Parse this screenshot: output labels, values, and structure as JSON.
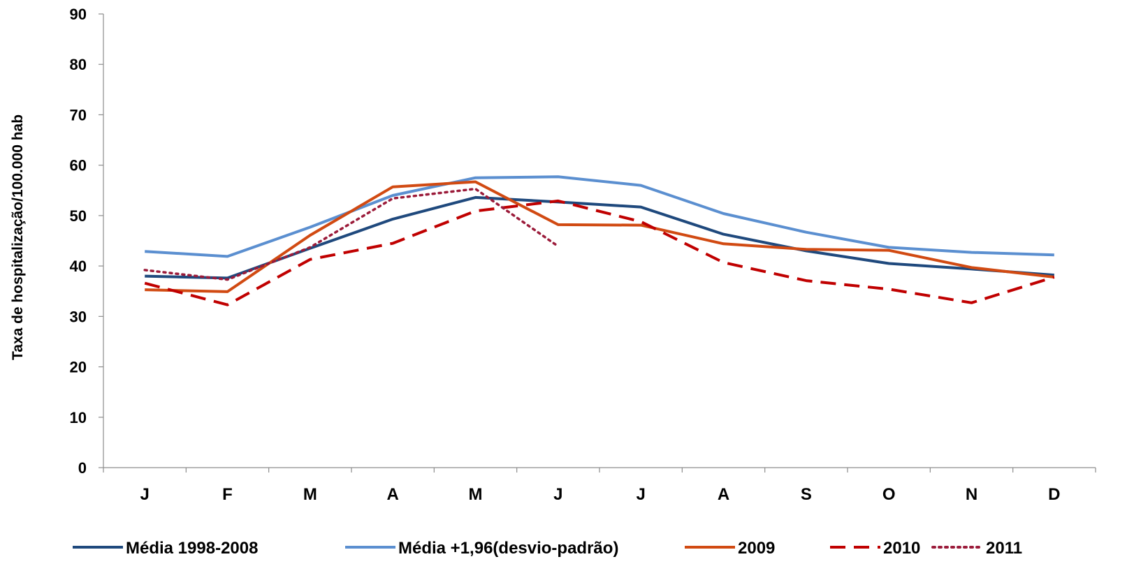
{
  "chart_data": {
    "type": "line",
    "title": "",
    "xlabel": "",
    "ylabel": "Taxa de hospitalização/100.000 hab",
    "ylim": [
      0,
      90
    ],
    "yticks": [
      0,
      10,
      20,
      30,
      40,
      50,
      60,
      70,
      80,
      90
    ],
    "categories": [
      "J",
      "F",
      "M",
      "A",
      "M",
      "J",
      "J",
      "A",
      "S",
      "O",
      "N",
      "D"
    ],
    "grid": false,
    "legend_position": "bottom",
    "series": [
      {
        "name": "Média 1998-2008",
        "color": "#1f497d",
        "dash": "solid",
        "values": [
          38.0,
          37.6,
          43.5,
          49.3,
          53.6,
          52.7,
          51.7,
          46.3,
          43.0,
          40.5,
          39.4,
          38.2
        ]
      },
      {
        "name": "Média +1,96(desvio-padrão)",
        "color": "#5b8fd0",
        "dash": "solid",
        "values": [
          42.9,
          41.9,
          47.7,
          54.0,
          57.5,
          57.7,
          56.0,
          50.4,
          46.7,
          43.7,
          42.7,
          42.2
        ]
      },
      {
        "name": "2009",
        "color": "#d14a12",
        "dash": "solid",
        "values": [
          35.3,
          34.9,
          46.1,
          55.7,
          56.7,
          48.2,
          48.1,
          44.4,
          43.3,
          43.1,
          39.7,
          37.8
        ]
      },
      {
        "name": "2010",
        "color": "#c00000",
        "dash": "dashed",
        "values": [
          36.6,
          32.3,
          41.3,
          44.5,
          50.9,
          52.9,
          48.8,
          40.7,
          37.1,
          35.4,
          32.7,
          37.8
        ]
      },
      {
        "name": "2011",
        "color": "#9b1b3a",
        "dash": "dotted",
        "values": [
          39.2,
          37.3,
          43.7,
          53.4,
          55.3,
          43.9,
          null,
          null,
          null,
          null,
          null,
          null
        ]
      }
    ]
  }
}
